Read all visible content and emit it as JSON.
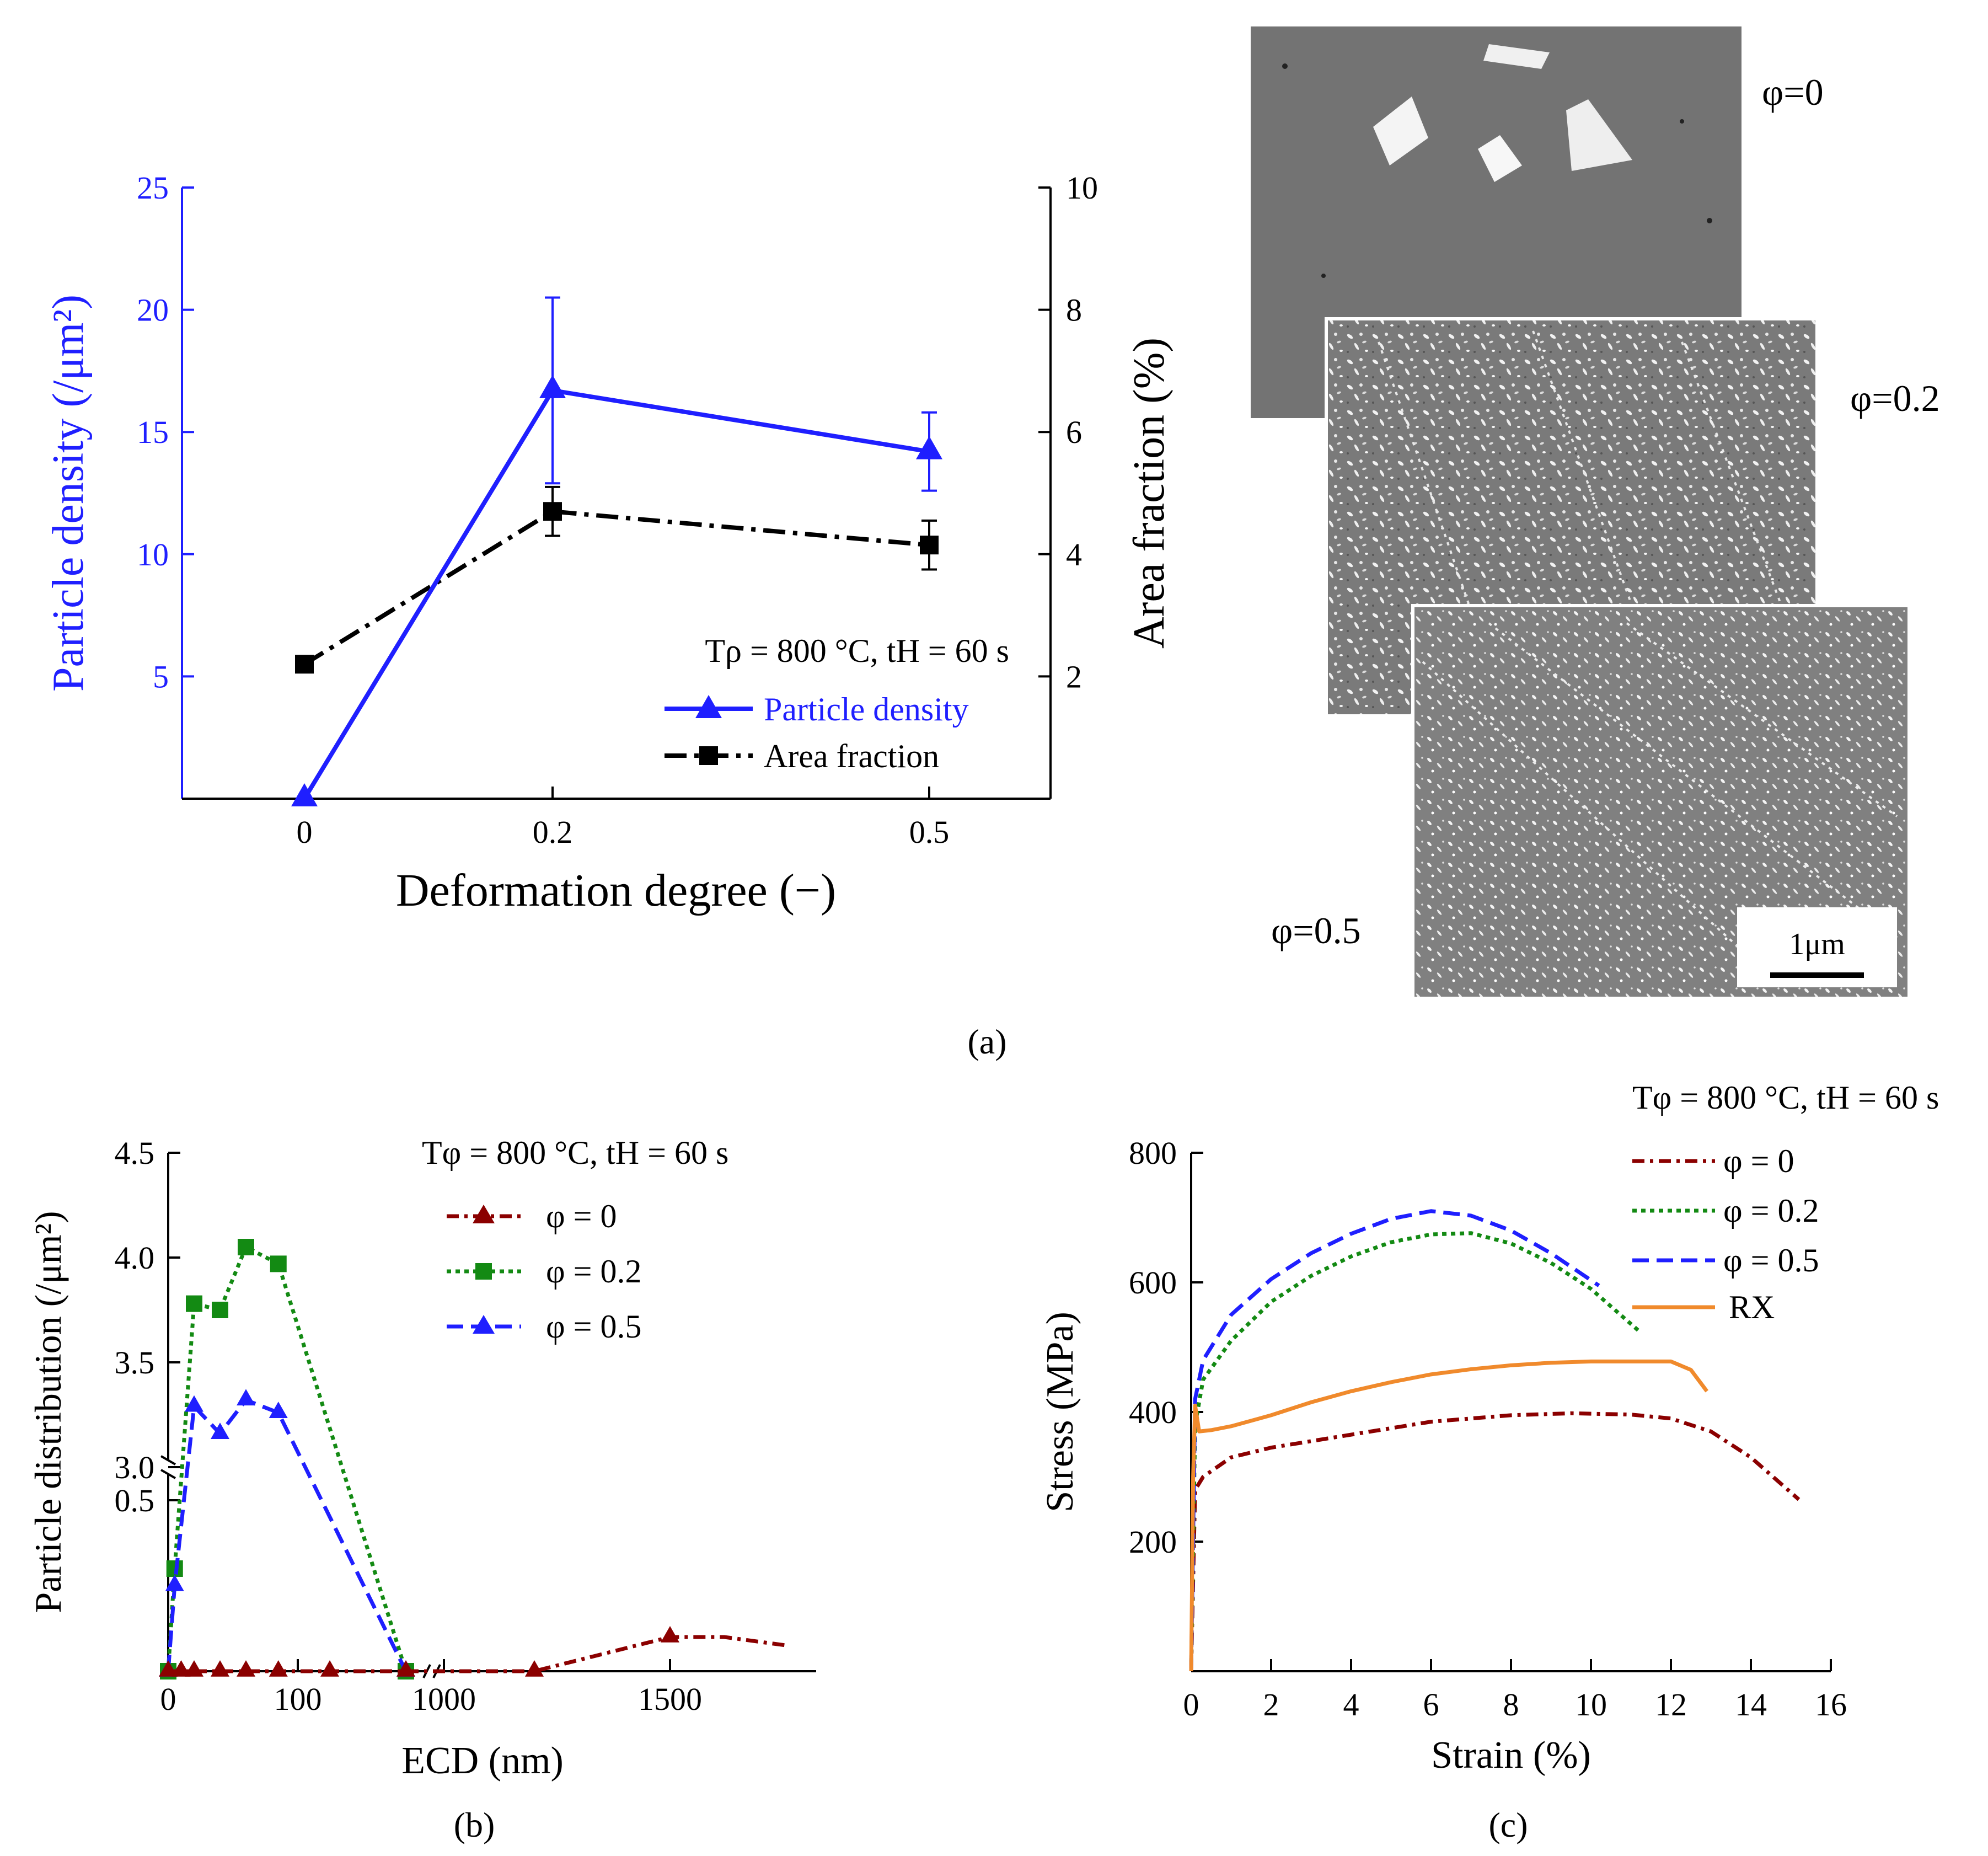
{
  "figure": {
    "caption_a": "(a)",
    "caption_b": "(b)",
    "caption_c": "(c)"
  },
  "micrographs": {
    "labels": [
      "φ=0",
      "φ=0.2",
      "φ=0.5"
    ],
    "scale_bar": "1μm"
  },
  "chart_data": [
    {
      "id": "a",
      "type": "line",
      "title": "",
      "annotation": "Tρ = 800 °C, tH = 60 s",
      "xlabel": "Deformation degree (−)",
      "ylabel_left": "Particle density (/μm²)",
      "ylabel_right": "Area fraction (%)",
      "categories": [
        "0",
        "0.2",
        "0.5"
      ],
      "ylim_left": [
        0,
        25
      ],
      "yticks_left": [
        5,
        10,
        15,
        20,
        25
      ],
      "ylim_right": [
        0,
        10
      ],
      "yticks_right": [
        2,
        4,
        6,
        8,
        10
      ],
      "colors": {
        "particle_density": "#1f1fff",
        "area_fraction": "#000000"
      },
      "series": [
        {
          "name": "Particle density",
          "axis": "left",
          "values": [
            0,
            16.7,
            14.2
          ],
          "error": [
            0,
            3.8,
            1.6
          ],
          "marker": "triangle"
        },
        {
          "name": "Area fraction",
          "axis": "right",
          "values": [
            2.2,
            4.7,
            4.15
          ],
          "error": [
            0,
            0.4,
            0.4
          ],
          "marker": "square"
        }
      ]
    },
    {
      "id": "b",
      "type": "line",
      "title": "",
      "annotation": "Tφ = 800 °C, tH = 60 s",
      "xlabel": "ECD (nm)",
      "ylabel": "Particle distribution (/μm²)",
      "xticks": [
        "0",
        "100",
        "1000",
        "1500"
      ],
      "yticks_upper": [
        "3.0",
        "3.5",
        "4.0",
        "4.5"
      ],
      "yticks_lower": [
        "0.5"
      ],
      "ylim_upper": [
        3.0,
        4.5
      ],
      "ylim_lower": [
        0,
        0.5
      ],
      "x_break_between": [
        110,
        1000
      ],
      "colors": {
        "phi0": "#8b0000",
        "phi02": "#138a13",
        "phi05": "#1f1fff"
      },
      "series": [
        {
          "name": "φ = 0",
          "x": [
            0,
            10,
            20,
            40,
            60,
            85,
            120,
            160,
            1200,
            1500
          ],
          "y": [
            0,
            0,
            0,
            0,
            0,
            0,
            0,
            0,
            0,
            0.1
          ]
        },
        {
          "name": "φ = 0.2",
          "x": [
            0,
            5,
            20,
            40,
            60,
            85,
            160
          ],
          "y": [
            0,
            0.3,
            3.78,
            3.75,
            4.05,
            3.97,
            0
          ]
        },
        {
          "name": "φ = 0.5",
          "x": [
            0,
            5,
            20,
            40,
            60,
            85,
            160
          ],
          "y": [
            0,
            0.25,
            3.29,
            3.16,
            3.32,
            3.26,
            0
          ]
        }
      ]
    },
    {
      "id": "c",
      "type": "line",
      "title": "",
      "annotation": "Tφ = 800 °C, tH = 60 s",
      "xlabel": "Strain (%)",
      "ylabel": "Stress (MPa)",
      "xlim": [
        0,
        16
      ],
      "xticks": [
        0,
        2,
        4,
        6,
        8,
        10,
        12,
        14,
        16
      ],
      "ylim": [
        0,
        800
      ],
      "yticks": [
        200,
        400,
        600,
        800
      ],
      "colors": {
        "phi0": "#8b0000",
        "phi02": "#138a13",
        "phi05": "#1f1fff",
        "rx": "#f08a2c"
      },
      "series": [
        {
          "name": "φ = 0",
          "x": [
            0,
            0.1,
            0.3,
            1,
            2,
            4,
            6,
            8,
            9.5,
            11,
            12,
            13,
            14,
            15.2
          ],
          "y": [
            0,
            280,
            300,
            330,
            345,
            365,
            385,
            395,
            398,
            396,
            390,
            370,
            330,
            265
          ]
        },
        {
          "name": "φ = 0.2",
          "x": [
            0,
            0.1,
            0.3,
            1,
            2,
            3,
            4,
            5,
            6,
            7,
            8,
            9,
            10,
            11.2
          ],
          "y": [
            0,
            380,
            450,
            510,
            570,
            610,
            640,
            662,
            674,
            676,
            660,
            630,
            590,
            525
          ]
        },
        {
          "name": "φ = 0.5",
          "x": [
            0,
            0.1,
            0.3,
            1,
            2,
            3,
            4,
            5,
            6,
            7,
            8,
            9,
            10.2
          ],
          "y": [
            0,
            420,
            480,
            550,
            605,
            645,
            675,
            698,
            710,
            703,
            680,
            645,
            595
          ]
        },
        {
          "name": "RX",
          "x": [
            0,
            0.05,
            0.1,
            0.2,
            0.5,
            1,
            2,
            3,
            4,
            5,
            6,
            7,
            8,
            9,
            10,
            11,
            12,
            12.5,
            12.9
          ],
          "y": [
            0,
            300,
            410,
            370,
            372,
            378,
            395,
            415,
            432,
            446,
            458,
            466,
            472,
            476,
            478,
            478,
            478,
            465,
            432
          ]
        }
      ]
    }
  ]
}
